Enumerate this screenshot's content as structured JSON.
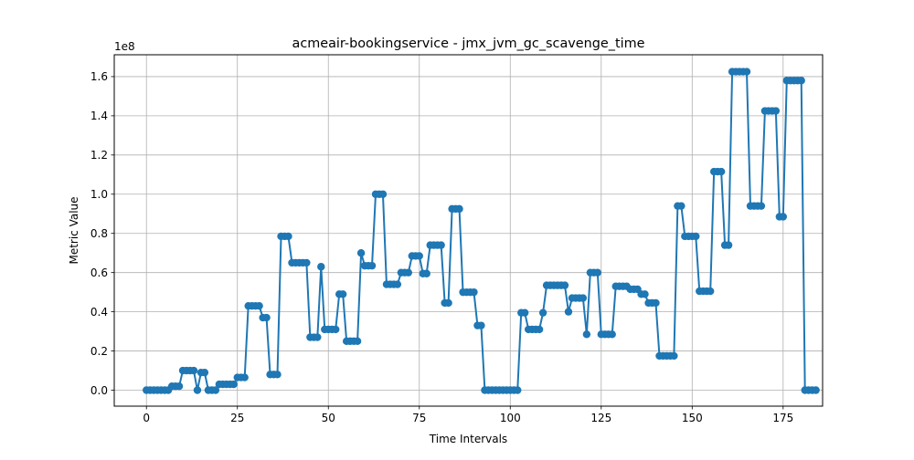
{
  "chart_data": {
    "type": "line",
    "title": "acmeair-bookingservice - jmx_jvm_gc_scavenge_time",
    "xlabel": "Time Intervals",
    "ylabel": "Metric Value",
    "y_offset_label": "1e8",
    "xlim": [
      -8.85,
      185.85
    ],
    "ylim": [
      -0.0815,
      1.7115
    ],
    "x_ticks": [
      0,
      25,
      50,
      75,
      100,
      125,
      150,
      175
    ],
    "y_ticks": [
      0.0,
      0.2,
      0.4,
      0.6,
      0.8,
      1.0,
      1.2,
      1.4,
      1.6
    ],
    "x_tick_labels": [
      "0",
      "25",
      "50",
      "75",
      "100",
      "125",
      "150",
      "175"
    ],
    "y_tick_labels": [
      "0.0",
      "0.2",
      "0.4",
      "0.6",
      "0.8",
      "1.0",
      "1.2",
      "1.4",
      "1.6"
    ],
    "grid": true,
    "marker": "circle",
    "colors": {
      "series": "#1f77b4",
      "grid": "#b0b0b0",
      "axes": "#000000"
    },
    "series": [
      {
        "values": [
          0,
          0,
          0,
          0,
          0,
          0,
          0,
          0.02,
          0.02,
          0.02,
          0.1,
          0.1,
          0.1,
          0.1,
          0,
          0.09,
          0.09,
          0,
          0,
          0,
          0.03,
          0.03,
          0.03,
          0.03,
          0.03,
          0.065,
          0.065,
          0.065,
          0.43,
          0.43,
          0.43,
          0.43,
          0.37,
          0.37,
          0.08,
          0.08,
          0.08,
          0.785,
          0.785,
          0.785,
          0.65,
          0.65,
          0.65,
          0.65,
          0.65,
          0.27,
          0.27,
          0.27,
          0.63,
          0.31,
          0.31,
          0.31,
          0.31,
          0.49,
          0.49,
          0.25,
          0.25,
          0.25,
          0.25,
          0.7,
          0.635,
          0.635,
          0.635,
          1.0,
          1.0,
          1.0,
          0.54,
          0.54,
          0.54,
          0.54,
          0.6,
          0.6,
          0.6,
          0.685,
          0.685,
          0.685,
          0.595,
          0.595,
          0.74,
          0.74,
          0.74,
          0.74,
          0.445,
          0.445,
          0.925,
          0.925,
          0.925,
          0.5,
          0.5,
          0.5,
          0.5,
          0.33,
          0.33,
          0,
          0,
          0,
          0,
          0,
          0,
          0,
          0,
          0,
          0,
          0.395,
          0.395,
          0.31,
          0.31,
          0.31,
          0.31,
          0.395,
          0.535,
          0.535,
          0.535,
          0.535,
          0.535,
          0.535,
          0.4,
          0.47,
          0.47,
          0.47,
          0.47,
          0.285,
          0.6,
          0.6,
          0.6,
          0.285,
          0.285,
          0.285,
          0.285,
          0.53,
          0.53,
          0.53,
          0.53,
          0.515,
          0.515,
          0.515,
          0.49,
          0.49,
          0.445,
          0.445,
          0.445,
          0.175,
          0.175,
          0.175,
          0.175,
          0.175,
          0.94,
          0.94,
          0.785,
          0.785,
          0.785,
          0.785,
          0.505,
          0.505,
          0.505,
          0.505,
          1.115,
          1.115,
          1.115,
          0.74,
          0.74,
          1.625,
          1.625,
          1.625,
          1.625,
          1.625,
          0.94,
          0.94,
          0.94,
          0.94,
          1.425,
          1.425,
          1.425,
          1.425,
          0.885,
          0.885,
          1.58,
          1.58,
          1.58,
          1.58,
          1.58,
          0,
          0,
          0,
          0
        ]
      }
    ]
  }
}
